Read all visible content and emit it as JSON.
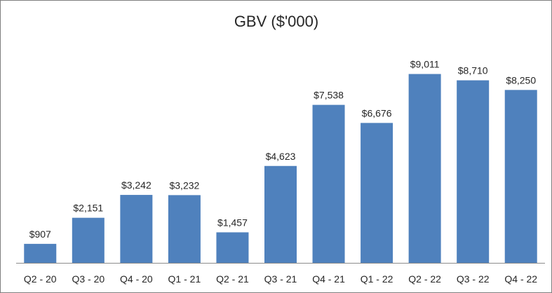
{
  "chart_data": {
    "type": "bar",
    "title": "GBV ($'000)",
    "xlabel": "",
    "ylabel": "",
    "categories": [
      "Q2 - 20",
      "Q3 - 20",
      "Q4 - 20",
      "Q1 - 21",
      "Q2 - 21",
      "Q3 - 21",
      "Q4 - 21",
      "Q1 - 22",
      "Q2 - 22",
      "Q3 - 22",
      "Q4 - 22"
    ],
    "values": [
      907,
      2151,
      3242,
      3232,
      1457,
      4623,
      7538,
      6676,
      9011,
      8710,
      8250
    ],
    "data_labels": [
      "$907",
      "$2,151",
      "$3,242",
      "$3,232",
      "$1,457",
      "$4,623",
      "$7,538",
      "$6,676",
      "$9,011",
      "$8,710",
      "$8,250"
    ],
    "ylim": [
      0,
      10000
    ],
    "grid": false,
    "legend": "none",
    "bar_color": "#4f81bd"
  }
}
